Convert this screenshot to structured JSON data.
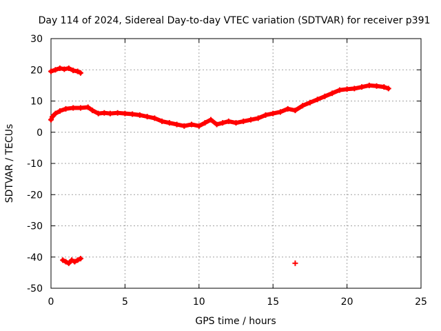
{
  "chart_data": {
    "type": "scatter",
    "title": "Day 114 of 2024, Sidereal Day-to-day VTEC variation (SDTVAR) for receiver p391",
    "xlabel": "GPS time / hours",
    "ylabel": "SDTVAR / TECUs",
    "xlim": [
      0,
      25
    ],
    "ylim": [
      -50,
      30
    ],
    "xticks": [
      0,
      5,
      10,
      15,
      20,
      25
    ],
    "xtick_labels": [
      "0",
      "5",
      "10",
      "15",
      "20",
      "25"
    ],
    "yticks": [
      30,
      20,
      10,
      0,
      -10,
      -20,
      -30,
      -40,
      -50
    ],
    "ytick_labels": [
      "30",
      "20",
      "10",
      "0",
      "-10",
      "-20",
      "-30",
      "-40",
      "-50"
    ],
    "grid": true,
    "marker": "plus",
    "color": "#ff0000",
    "series": [
      {
        "name": "main",
        "x": [
          0.0,
          0.1,
          0.3,
          0.6,
          1.0,
          1.5,
          2.0,
          2.5,
          2.8,
          3.2,
          3.6,
          4.0,
          4.5,
          5.0,
          5.5,
          6.0,
          6.5,
          7.0,
          7.5,
          8.0,
          8.5,
          9.0,
          9.5,
          10.0,
          10.4,
          10.8,
          11.2,
          11.6,
          12.0,
          12.5,
          13.0,
          13.5,
          14.0,
          14.5,
          15.0,
          15.5,
          16.0,
          16.5,
          17.0,
          17.5,
          18.0,
          18.5,
          19.0,
          19.5,
          20.0,
          20.5,
          21.0,
          21.5,
          22.0,
          22.5,
          22.8
        ],
        "y": [
          4.0,
          5.0,
          6.0,
          6.8,
          7.5,
          7.8,
          7.8,
          8.0,
          7.0,
          6.0,
          6.2,
          6.0,
          6.2,
          6.0,
          5.8,
          5.5,
          5.0,
          4.5,
          3.5,
          3.0,
          2.5,
          2.0,
          2.5,
          2.0,
          3.0,
          4.0,
          2.5,
          3.0,
          3.5,
          3.0,
          3.5,
          4.0,
          4.5,
          5.5,
          6.0,
          6.5,
          7.5,
          7.0,
          8.5,
          9.5,
          10.5,
          11.5,
          12.5,
          13.5,
          13.8,
          14.0,
          14.5,
          15.0,
          14.8,
          14.5,
          14.0
        ]
      },
      {
        "name": "upper",
        "x": [
          0.0,
          0.3,
          0.6,
          0.9,
          1.2,
          1.5,
          1.8,
          2.0
        ],
        "y": [
          19.5,
          20.0,
          20.5,
          20.2,
          20.5,
          19.8,
          19.5,
          19.0
        ]
      },
      {
        "name": "lower",
        "x": [
          0.8,
          1.0,
          1.2,
          1.4,
          1.6,
          1.8,
          2.0
        ],
        "y": [
          -41.0,
          -41.5,
          -42.0,
          -41.0,
          -41.5,
          -41.0,
          -40.5
        ]
      },
      {
        "name": "isolated",
        "x": [
          16.5
        ],
        "y": [
          -42.0
        ]
      }
    ]
  }
}
